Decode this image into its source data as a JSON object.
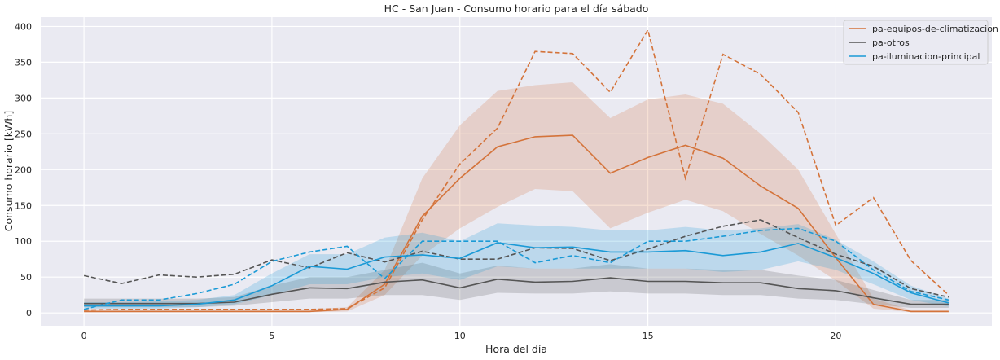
{
  "chart_data": {
    "type": "line",
    "title": "HC - San Juan - Consumo horario para el día sábado",
    "xlabel": "Hora del día",
    "ylabel": "Consumo horario [kWh]",
    "xlim": [
      -1.15,
      24.15
    ],
    "ylim": [
      -18,
      413
    ],
    "xticks": [
      0,
      5,
      10,
      15,
      20
    ],
    "yticks": [
      0,
      50,
      100,
      150,
      200,
      250,
      300,
      350,
      400
    ],
    "grid": true,
    "legend_position": "top-right",
    "x": [
      0,
      1,
      2,
      3,
      4,
      5,
      6,
      7,
      8,
      9,
      10,
      11,
      12,
      13,
      14,
      15,
      16,
      17,
      18,
      19,
      20,
      21,
      22,
      23
    ],
    "series": [
      {
        "name": "pa-equipos-de-climatizacion",
        "color": "#d4733a",
        "mean": [
          2,
          2,
          2,
          2,
          2,
          2,
          2,
          5,
          40,
          135,
          188,
          232,
          246,
          248,
          195,
          217,
          234,
          216,
          177,
          146,
          77,
          12,
          2,
          2
        ],
        "band_low": [
          1,
          1,
          1,
          1,
          1,
          1,
          1,
          2,
          25,
          80,
          118,
          148,
          173,
          170,
          118,
          140,
          158,
          142,
          110,
          80,
          45,
          6,
          1,
          1
        ],
        "band_high": [
          5,
          5,
          5,
          5,
          5,
          5,
          5,
          8,
          60,
          188,
          262,
          310,
          318,
          322,
          272,
          298,
          305,
          292,
          250,
          200,
          110,
          20,
          4,
          4
        ],
        "reference": [
          4,
          5,
          5,
          5,
          5,
          5,
          5,
          6,
          35,
          130,
          208,
          258,
          365,
          362,
          308,
          395,
          188,
          361,
          333,
          280,
          122,
          161,
          73,
          25
        ]
      },
      {
        "name": "pa-otros",
        "color": "#555555",
        "mean": [
          13,
          13,
          13,
          13,
          15,
          26,
          35,
          34,
          43,
          46,
          35,
          47,
          43,
          44,
          49,
          44,
          44,
          42,
          42,
          34,
          31,
          21,
          12,
          12
        ],
        "band_low": [
          8,
          8,
          8,
          8,
          10,
          15,
          20,
          20,
          25,
          25,
          18,
          28,
          27,
          27,
          30,
          27,
          27,
          25,
          25,
          20,
          18,
          12,
          7,
          7
        ],
        "band_high": [
          20,
          20,
          20,
          20,
          22,
          38,
          50,
          50,
          60,
          70,
          55,
          66,
          62,
          62,
          68,
          62,
          62,
          60,
          60,
          52,
          46,
          32,
          18,
          18
        ],
        "reference": [
          52,
          41,
          53,
          50,
          54,
          74,
          63,
          84,
          71,
          86,
          75,
          75,
          91,
          90,
          73,
          89,
          107,
          121,
          130,
          105,
          82,
          65,
          34,
          22
        ]
      },
      {
        "name": "pa-iluminacion-principal",
        "color": "#1b9ad6",
        "mean": [
          10,
          10,
          10,
          12,
          18,
          38,
          65,
          61,
          78,
          81,
          76,
          98,
          91,
          92,
          85,
          85,
          87,
          80,
          85,
          97,
          77,
          55,
          28,
          14
        ],
        "band_low": [
          6,
          6,
          6,
          8,
          12,
          25,
          40,
          40,
          50,
          55,
          46,
          65,
          62,
          62,
          62,
          62,
          62,
          57,
          60,
          72,
          60,
          40,
          18,
          9
        ],
        "band_high": [
          15,
          15,
          16,
          18,
          25,
          55,
          82,
          82,
          105,
          112,
          100,
          125,
          122,
          120,
          115,
          115,
          120,
          115,
          118,
          124,
          102,
          72,
          38,
          20
        ],
        "reference": [
          5,
          18,
          18,
          27,
          40,
          72,
          85,
          93,
          48,
          100,
          100,
          100,
          70,
          80,
          70,
          100,
          100,
          107,
          115,
          118,
          100,
          60,
          30,
          18
        ]
      }
    ]
  }
}
